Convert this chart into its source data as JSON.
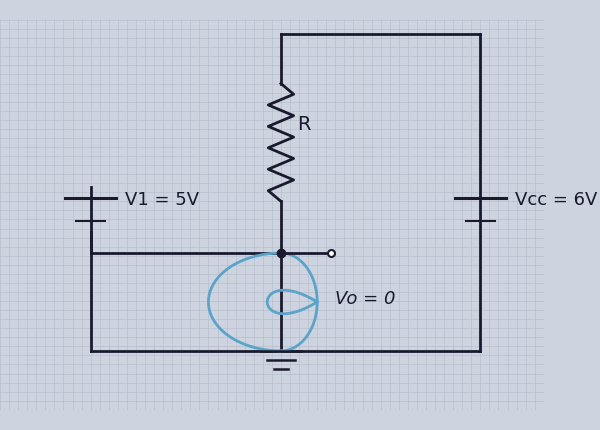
{
  "bg_color": "#cdd4df",
  "grid_color": "#b5bccb",
  "line_color": "#1a1a2e",
  "diode_color": "#5ba3c9",
  "figsize": [
    6.0,
    4.31
  ],
  "dpi": 100,
  "v1_label": "V1 = 5V",
  "vcc_label": "Vcc = 6V",
  "r_label": "R",
  "vo_label": "Vo = 0"
}
